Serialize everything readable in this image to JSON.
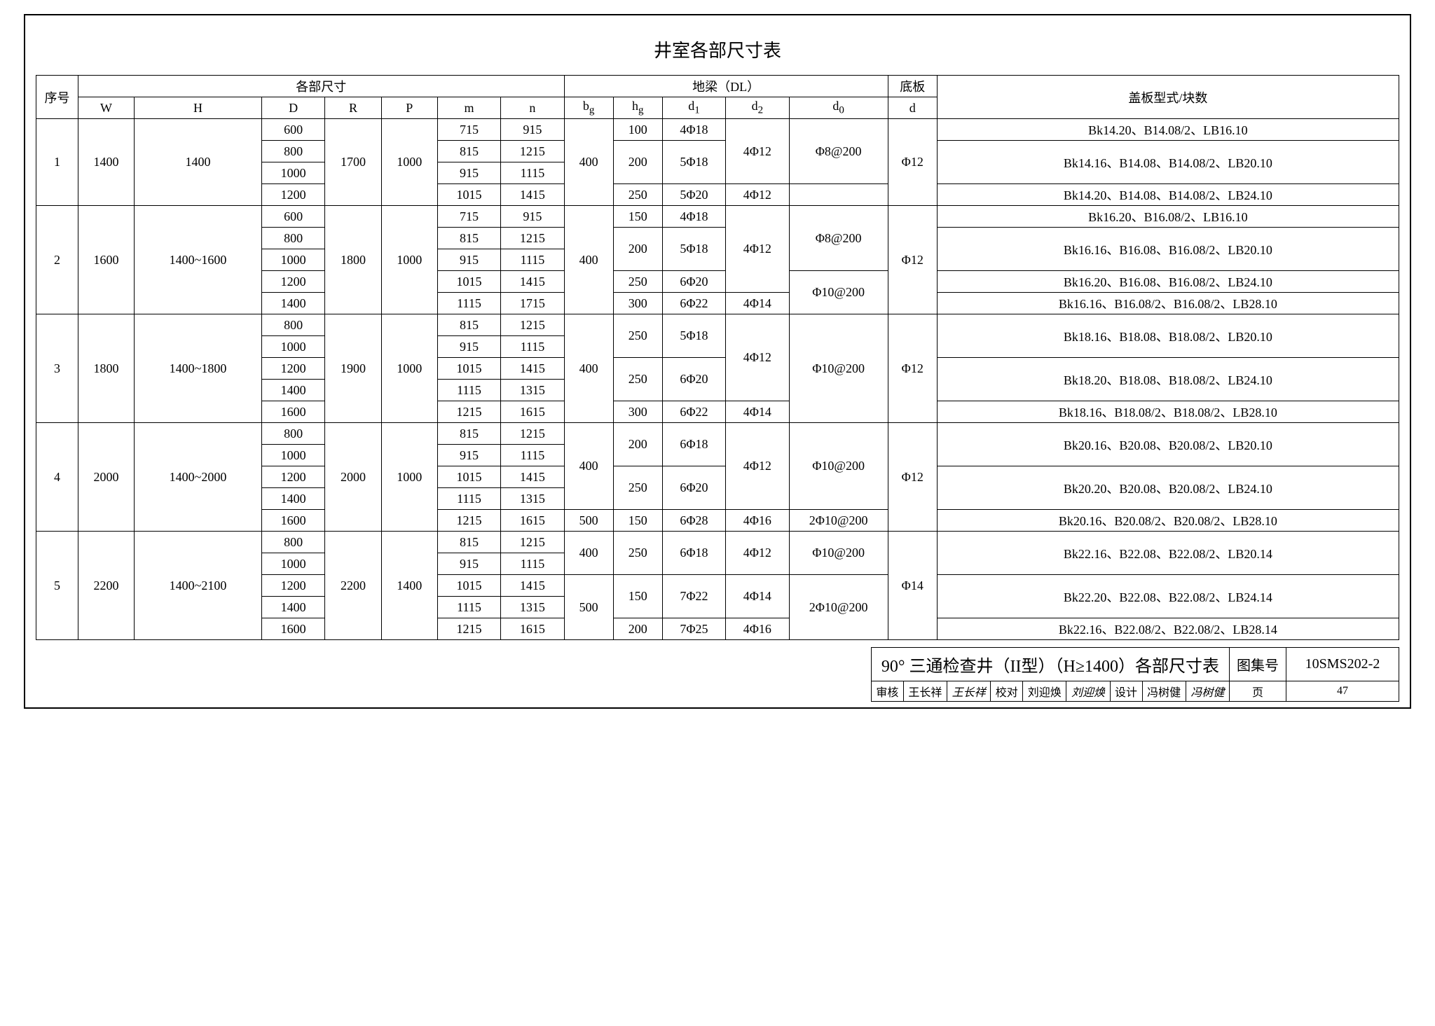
{
  "title": "井室各部尺寸表",
  "header": {
    "seq": "序号",
    "group1": "各部尺寸",
    "group2": "地梁（DL）",
    "group3": "底板",
    "group4": "盖板型式/块数",
    "cols": [
      "W",
      "H",
      "D",
      "R",
      "P",
      "m",
      "n",
      "bg",
      "hg",
      "d1",
      "d2",
      "d0",
      "d"
    ]
  },
  "blocks": [
    {
      "seq": "1",
      "W": "1400",
      "H": "1400",
      "R": "1700",
      "P": "1000",
      "bg": "400",
      "d": "Φ12",
      "rows": [
        {
          "D": "600",
          "m": "715",
          "n": "915",
          "hg": "100",
          "d1": "4Φ18",
          "d2": "4Φ12",
          "d0": "Φ8@200",
          "cover": "Bk14.20、B14.08/2、LB16.10",
          "hgSpan": 1,
          "d1Span": 1,
          "d2Span": 3,
          "d0Span": 3,
          "coverSpan": 1
        },
        {
          "D": "800",
          "m": "815",
          "n": "1215",
          "hg": "200",
          "d1": "5Φ18",
          "cover": "Bk14.16、B14.08、B14.08/2、LB20.10",
          "hgSpan": 2,
          "d1Span": 2,
          "coverSpan": 2
        },
        {
          "D": "1000",
          "m": "915",
          "n": "1115"
        },
        {
          "D": "1200",
          "m": "1015",
          "n": "1415",
          "hg": "250",
          "d1": "5Φ20",
          "d2": "4Φ12",
          "d0": "",
          "cover": "Bk14.20、B14.08、B14.08/2、LB24.10",
          "hgSpan": 1,
          "d1Span": 1,
          "d2Span": 1,
          "d0Span": 1,
          "coverSpan": 1
        }
      ]
    },
    {
      "seq": "2",
      "W": "1600",
      "H": "1400~1600",
      "R": "1800",
      "P": "1000",
      "bg": "400",
      "d": "Φ12",
      "rows": [
        {
          "D": "600",
          "m": "715",
          "n": "915",
          "hg": "150",
          "d1": "4Φ18",
          "d2": "4Φ12",
          "d0": "Φ8@200",
          "cover": "Bk16.20、B16.08/2、LB16.10",
          "hgSpan": 1,
          "d1Span": 1,
          "d2Span": 4,
          "d0Span": 3,
          "coverSpan": 1
        },
        {
          "D": "800",
          "m": "815",
          "n": "1215",
          "hg": "200",
          "d1": "5Φ18",
          "cover": "Bk16.16、B16.08、B16.08/2、LB20.10",
          "hgSpan": 2,
          "d1Span": 2,
          "coverSpan": 2
        },
        {
          "D": "1000",
          "m": "915",
          "n": "1115"
        },
        {
          "D": "1200",
          "m": "1015",
          "n": "1415",
          "hg": "250",
          "d1": "6Φ20",
          "d0": "Φ10@200",
          "cover": "Bk16.20、B16.08、B16.08/2、LB24.10",
          "hgSpan": 1,
          "d1Span": 1,
          "d0Span": 2,
          "coverSpan": 1
        },
        {
          "D": "1400",
          "m": "1115",
          "n": "1715",
          "hg": "300",
          "d1": "6Φ22",
          "d2": "4Φ14",
          "cover": "Bk16.16、B16.08/2、B16.08/2、LB28.10",
          "hgSpan": 1,
          "d1Span": 1,
          "d2Span": 1,
          "coverSpan": 1
        }
      ]
    },
    {
      "seq": "3",
      "W": "1800",
      "H": "1400~1800",
      "R": "1900",
      "P": "1000",
      "bg": "400",
      "d": "Φ12",
      "rows": [
        {
          "D": "800",
          "m": "815",
          "n": "1215",
          "hg": "250",
          "d1": "5Φ18",
          "d2": "4Φ12",
          "d0": "Φ10@200",
          "cover": "Bk18.16、B18.08、B18.08/2、LB20.10",
          "hgSpan": 2,
          "d1Span": 2,
          "d2Span": 4,
          "d0Span": 5,
          "coverSpan": 2
        },
        {
          "D": "1000",
          "m": "915",
          "n": "1115"
        },
        {
          "D": "1200",
          "m": "1015",
          "n": "1415",
          "hg": "250",
          "d1": "6Φ20",
          "cover": "Bk18.20、B18.08、B18.08/2、LB24.10",
          "hgSpan": 2,
          "d1Span": 2,
          "coverSpan": 2
        },
        {
          "D": "1400",
          "m": "1115",
          "n": "1315"
        },
        {
          "D": "1600",
          "m": "1215",
          "n": "1615",
          "hg": "300",
          "d1": "6Φ22",
          "d2": "4Φ14",
          "cover": "Bk18.16、B18.08/2、B18.08/2、LB28.10",
          "hgSpan": 1,
          "d1Span": 1,
          "d2Span": 1,
          "coverSpan": 1
        }
      ]
    },
    {
      "seq": "4",
      "W": "2000",
      "H": "1400~2000",
      "R": "2000",
      "P": "1000",
      "d": "Φ12",
      "rows": [
        {
          "D": "800",
          "m": "815",
          "n": "1215",
          "bg": "400",
          "hg": "200",
          "d1": "6Φ18",
          "d2": "4Φ12",
          "d0": "Φ10@200",
          "cover": "Bk20.16、B20.08、B20.08/2、LB20.10",
          "bgSpan": 4,
          "hgSpan": 2,
          "d1Span": 2,
          "d2Span": 4,
          "d0Span": 4,
          "coverSpan": 2
        },
        {
          "D": "1000",
          "m": "915",
          "n": "1115"
        },
        {
          "D": "1200",
          "m": "1015",
          "n": "1415",
          "hg": "250",
          "d1": "6Φ20",
          "cover": "Bk20.20、B20.08、B20.08/2、LB24.10",
          "hgSpan": 2,
          "d1Span": 2,
          "coverSpan": 2
        },
        {
          "D": "1400",
          "m": "1115",
          "n": "1315"
        },
        {
          "D": "1600",
          "m": "1215",
          "n": "1615",
          "bg": "500",
          "hg": "150",
          "d1": "6Φ28",
          "d2": "4Φ16",
          "d0": "2Φ10@200",
          "cover": "Bk20.16、B20.08/2、B20.08/2、LB28.10",
          "bgSpan": 1,
          "hgSpan": 1,
          "d1Span": 1,
          "d2Span": 1,
          "d0Span": 1,
          "coverSpan": 1
        }
      ]
    },
    {
      "seq": "5",
      "W": "2200",
      "H": "1400~2100",
      "R": "2200",
      "P": "1400",
      "d": "Φ14",
      "rows": [
        {
          "D": "800",
          "m": "815",
          "n": "1215",
          "bg": "400",
          "hg": "250",
          "d1": "6Φ18",
          "d2": "4Φ12",
          "d0": "Φ10@200",
          "cover": "Bk22.16、B22.08、B22.08/2、LB20.14",
          "bgSpan": 2,
          "hgSpan": 2,
          "d1Span": 2,
          "d2Span": 2,
          "d0Span": 2,
          "coverSpan": 2
        },
        {
          "D": "1000",
          "m": "915",
          "n": "1115"
        },
        {
          "D": "1200",
          "m": "1015",
          "n": "1415",
          "bg": "500",
          "hg": "150",
          "d1": "7Φ22",
          "d2": "4Φ14",
          "d0": "2Φ10@200",
          "cover": "Bk22.20、B22.08、B22.08/2、LB24.14",
          "bgSpan": 3,
          "hgSpan": 2,
          "d1Span": 2,
          "d2Span": 2,
          "d0Span": 3,
          "coverSpan": 2
        },
        {
          "D": "1400",
          "m": "1115",
          "n": "1315"
        },
        {
          "D": "1600",
          "m": "1215",
          "n": "1615",
          "hg": "200",
          "d1": "7Φ25",
          "d2": "4Φ16",
          "cover": "Bk22.16、B22.08/2、B22.08/2、LB28.14",
          "hgSpan": 1,
          "d1Span": 1,
          "d2Span": 1,
          "coverSpan": 1
        }
      ]
    }
  ],
  "footer": {
    "docTitle": "90° 三通检查井（II型）（H≥1400）各部尺寸表",
    "atlasLabel": "图集号",
    "atlasNo": "10SMS202-2",
    "pageLabel": "页",
    "pageNo": "47",
    "review": "审核",
    "reviewName": "王长祥",
    "reviewSig": "王长祥",
    "check": "校对",
    "checkName": "刘迎焕",
    "checkSig": "刘迎焕",
    "design": "设计",
    "designName": "冯树健",
    "designSig": "冯树健"
  },
  "colWidths": {
    "seq": 50,
    "W": 70,
    "H": 170,
    "D": 80,
    "R": 70,
    "P": 70,
    "m": 80,
    "n": 80,
    "bg": 60,
    "hg": 60,
    "d1": 80,
    "d2": 80,
    "d0": 130,
    "d": 60,
    "cover": 640
  }
}
